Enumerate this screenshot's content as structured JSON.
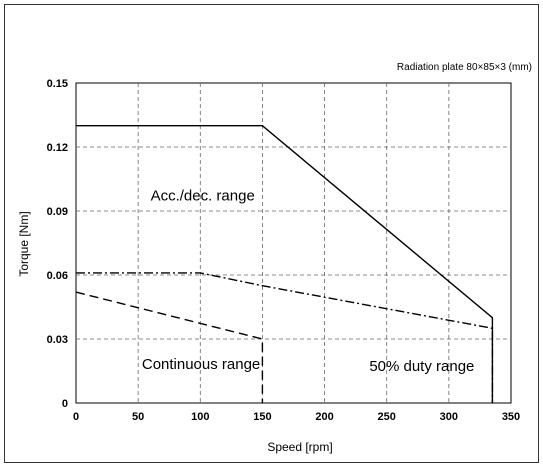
{
  "chart_data": {
    "type": "line",
    "title": "",
    "note": "Radiation plate   80×85×3 (mm)",
    "xlabel": "Speed [rpm]",
    "ylabel": "Torque [Nm]",
    "xlim": [
      0,
      350
    ],
    "ylim": [
      0,
      0.15
    ],
    "xticks": [
      "0",
      "50",
      "100",
      "150",
      "200",
      "250",
      "300",
      "350"
    ],
    "yticks": [
      "0",
      "0.03",
      "0.06",
      "0.09",
      "0.12",
      "0.15"
    ],
    "grid": true,
    "series": [
      {
        "style": "solid",
        "x": [
          0,
          150,
          335,
          335
        ],
        "y": [
          0.13,
          0.13,
          0.04,
          0
        ]
      },
      {
        "style": "dashdot",
        "x": [
          0,
          100,
          150,
          335,
          335
        ],
        "y": [
          0.061,
          0.061,
          0.055,
          0.035,
          0
        ]
      },
      {
        "style": "dashed",
        "x": [
          0,
          150,
          150
        ],
        "y": [
          0.052,
          0.03,
          0
        ]
      }
    ],
    "region_labels": [
      {
        "text": "Acc./dec. range",
        "x": 60,
        "y": 0.095
      },
      {
        "text": "Continuous range",
        "x": 53,
        "y": 0.016
      },
      {
        "text": "50% duty range",
        "x": 236,
        "y": 0.015
      }
    ]
  }
}
